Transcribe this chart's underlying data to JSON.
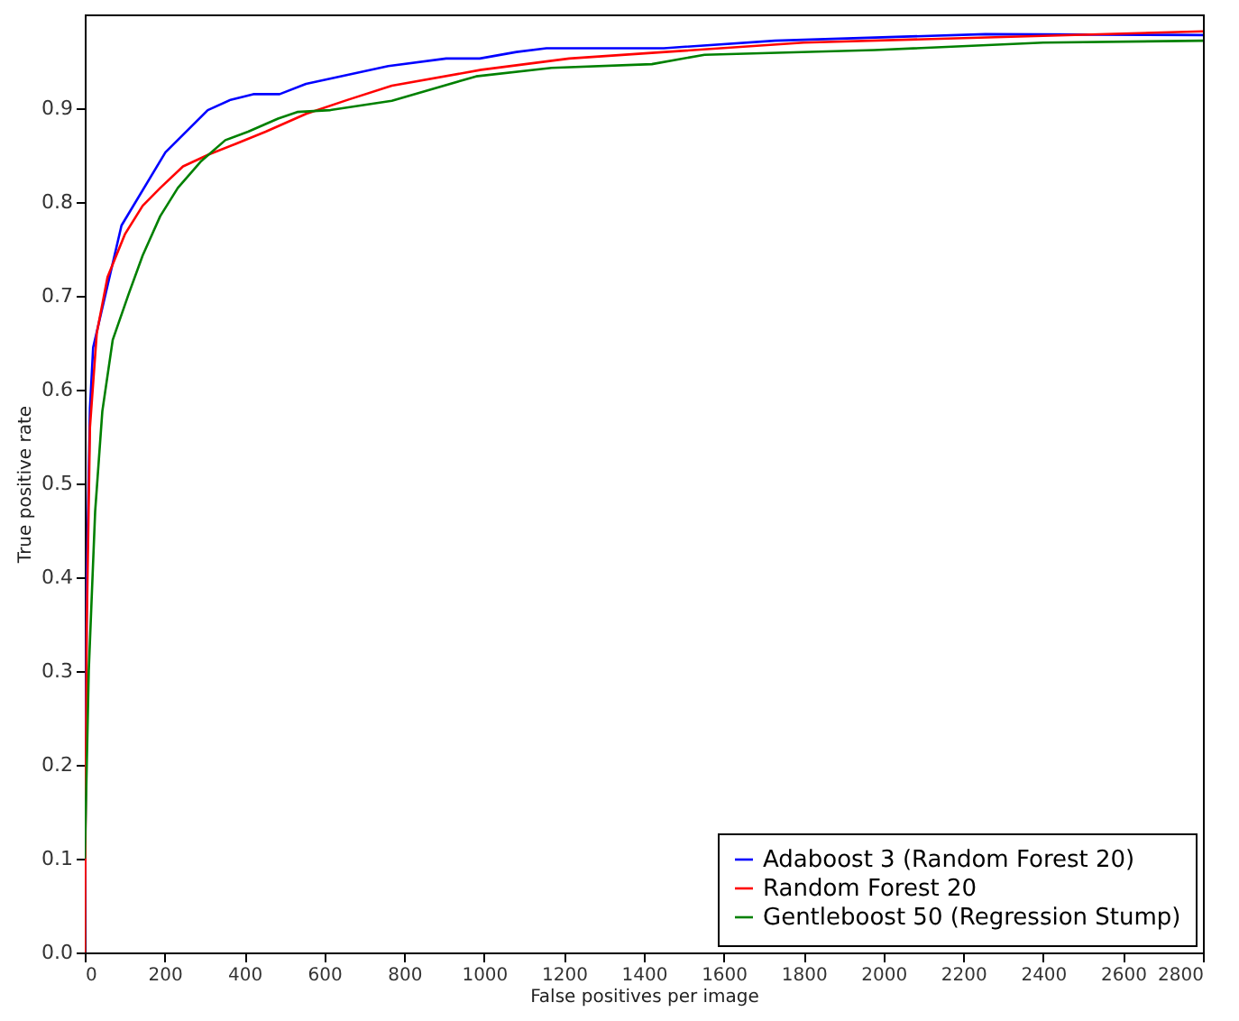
{
  "chart_data": {
    "type": "line",
    "xlabel": "False positives per image",
    "ylabel": "True positive rate",
    "xlim": [
      0,
      2800
    ],
    "ylim": [
      0,
      1.0
    ],
    "xticks": [
      0,
      200,
      400,
      600,
      800,
      1000,
      1200,
      1400,
      1600,
      1800,
      2000,
      2200,
      2400,
      2600,
      2800
    ],
    "yticks": [
      {
        "value": 0,
        "label": "0.0"
      },
      0.1,
      0.2,
      0.3,
      0.4,
      0.5,
      0.6,
      0.7,
      0.8,
      0.9
    ],
    "grid": false,
    "legend": "bottom right",
    "marker": "none",
    "line_style": "solid",
    "series": [
      {
        "name": "Adaboost 3 (Random Forest 20)",
        "color": "#0000ff",
        "x": [
          0,
          5,
          13,
          21,
          92,
          202,
          308,
          365,
          422,
          488,
          554,
          760,
          905,
          989,
          1081,
          1156,
          1450,
          1728,
          2255,
          2800
        ],
        "values": [
          0,
          0.4,
          0.58,
          0.645,
          0.775,
          0.853,
          0.898,
          0.909,
          0.915,
          0.915,
          0.926,
          0.945,
          0.953,
          0.953,
          0.96,
          0.964,
          0.964,
          0.972,
          0.979,
          0.978
        ]
      },
      {
        "name": "Random Forest 20",
        "color": "#ff0000",
        "x": [
          0,
          5,
          13,
          30,
          57,
          101,
          145,
          189,
          246,
          312,
          378,
          453,
          554,
          659,
          769,
          993,
          1213,
          1420,
          1800,
          2300,
          2800
        ],
        "values": [
          0,
          0.35,
          0.56,
          0.66,
          0.72,
          0.766,
          0.796,
          0.815,
          0.838,
          0.851,
          0.862,
          0.875,
          0.894,
          0.909,
          0.924,
          0.941,
          0.953,
          0.959,
          0.97,
          0.976,
          0.982
        ]
      },
      {
        "name": "Gentleboost 50 (Regression Stump)",
        "color": "#008000",
        "x": [
          0,
          10,
          26,
          44,
          70,
          110,
          145,
          189,
          233,
          290,
          352,
          409,
          484,
          532,
          615,
          769,
          980,
          1169,
          1420,
          1552,
          1978,
          2400,
          2800
        ],
        "values": [
          0.1,
          0.3,
          0.47,
          0.577,
          0.653,
          0.702,
          0.743,
          0.785,
          0.815,
          0.843,
          0.866,
          0.875,
          0.889,
          0.896,
          0.898,
          0.908,
          0.934,
          0.943,
          0.947,
          0.957,
          0.962,
          0.97,
          0.972
        ]
      }
    ]
  }
}
